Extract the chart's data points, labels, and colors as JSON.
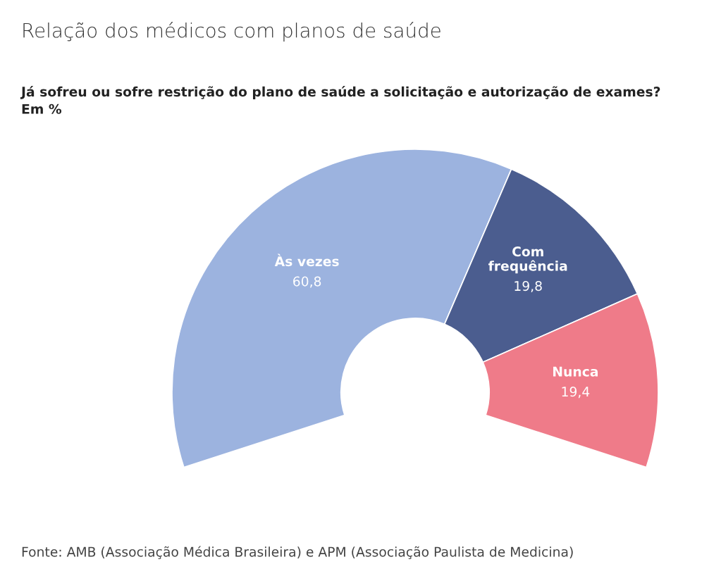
{
  "chart_data": {
    "type": "donut",
    "title": "Relação dos médicos com planos de saúde",
    "subtitle": "Já sofreu ou sofre restrição do plano de saúde a solicitação e autorização de exames?\nEm %",
    "categories": [
      "Às vezes",
      "Com frequência",
      "Nunca"
    ],
    "values": [
      60.8,
      19.8,
      19.4
    ],
    "colors": [
      "#9cb3df",
      "#4b5d8f",
      "#ef7b89"
    ],
    "value_labels": [
      "60,8",
      "19,8",
      "19,4"
    ],
    "annotations": [
      "Fonte: AMB (Associação Médica Brasileira) e APM (Associação Paulista de Medicina)"
    ]
  }
}
